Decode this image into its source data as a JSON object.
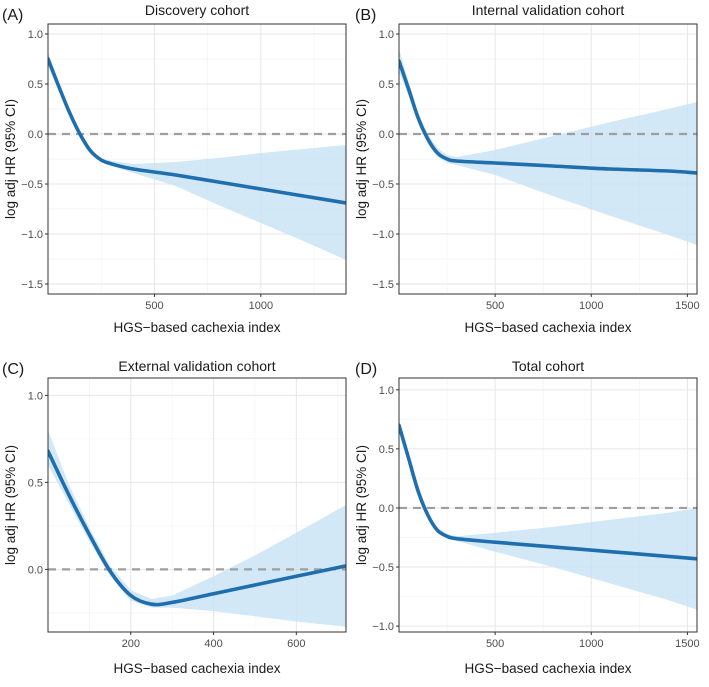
{
  "colors": {
    "line": "#1f6fae",
    "band": "#c7e2f4",
    "ref": "#9e9e9e"
  },
  "chart_data": [
    {
      "type": "line",
      "panel_label": "(A)",
      "title": "Discovery cohort",
      "xlabel": "HGS−based cachexia index",
      "ylabel": "log adj HR (95% CI)",
      "xlim": [
        0,
        1400
      ],
      "ylim": [
        -1.6,
        1.1
      ],
      "x_ticks": [
        500,
        1000
      ],
      "y_ticks": [
        1.0,
        0.5,
        0.0,
        -0.5,
        -1.0,
        -1.5
      ],
      "y_tick_labels": [
        "1.0",
        "0.5",
        "0.0",
        "−0.5",
        "−1.0",
        "−1.5"
      ],
      "reference_y": 0,
      "series": [
        {
          "name": "log adj HR",
          "x": [
            0,
            50,
            100,
            150,
            200,
            250,
            300,
            400,
            600,
            800,
            1000,
            1200,
            1400
          ],
          "y": [
            0.75,
            0.48,
            0.22,
            0.0,
            -0.17,
            -0.26,
            -0.3,
            -0.35,
            -0.41,
            -0.48,
            -0.55,
            -0.62,
            -0.69
          ],
          "lower": [
            0.68,
            0.44,
            0.2,
            -0.02,
            -0.19,
            -0.28,
            -0.32,
            -0.39,
            -0.52,
            -0.71,
            -0.89,
            -1.07,
            -1.26
          ],
          "upper": [
            0.82,
            0.52,
            0.24,
            0.02,
            -0.15,
            -0.24,
            -0.27,
            -0.3,
            -0.28,
            -0.24,
            -0.19,
            -0.15,
            -0.11
          ]
        }
      ]
    },
    {
      "type": "line",
      "panel_label": "(B)",
      "title": "Internal validation cohort",
      "xlabel": "HGS−based cachexia index",
      "ylabel": "log adj HR (95% CI)",
      "xlim": [
        0,
        1550
      ],
      "ylim": [
        -1.6,
        1.1
      ],
      "x_ticks": [
        500,
        1000,
        1500
      ],
      "y_ticks": [
        1.0,
        0.5,
        0.0,
        -0.5,
        -1.0,
        -1.5
      ],
      "y_tick_labels": [
        "1.0",
        "0.5",
        "0.0",
        "−0.5",
        "−1.0",
        "−1.5"
      ],
      "reference_y": 0,
      "series": [
        {
          "name": "log adj HR",
          "x": [
            0,
            50,
            100,
            150,
            200,
            250,
            300,
            500,
            800,
            1100,
            1400,
            1550
          ],
          "y": [
            0.73,
            0.45,
            0.16,
            -0.05,
            -0.19,
            -0.25,
            -0.27,
            -0.29,
            -0.32,
            -0.35,
            -0.37,
            -0.39
          ],
          "lower": [
            0.62,
            0.38,
            0.11,
            -0.1,
            -0.23,
            -0.29,
            -0.31,
            -0.41,
            -0.62,
            -0.82,
            -1.01,
            -1.11
          ],
          "upper": [
            0.85,
            0.52,
            0.21,
            0.0,
            -0.14,
            -0.21,
            -0.23,
            -0.16,
            -0.02,
            0.12,
            0.25,
            0.32
          ]
        }
      ]
    },
    {
      "type": "line",
      "panel_label": "(C)",
      "title": "External validation cohort",
      "xlabel": "HGS−based cachexia index",
      "ylabel": "log adj HR (95% CI)",
      "xlim": [
        0,
        720
      ],
      "ylim": [
        -0.36,
        1.1
      ],
      "x_ticks": [
        200,
        400,
        600
      ],
      "y_ticks": [
        1.0,
        0.5,
        0.0
      ],
      "y_tick_labels": [
        "1.0",
        "0.5",
        "0.0"
      ],
      "reference_y": 0,
      "series": [
        {
          "name": "log adj HR",
          "x": [
            0,
            50,
            100,
            150,
            200,
            250,
            300,
            400,
            500,
            600,
            720
          ],
          "y": [
            0.68,
            0.43,
            0.2,
            -0.01,
            -0.15,
            -0.2,
            -0.19,
            -0.14,
            -0.09,
            -0.04,
            0.02
          ],
          "lower": [
            0.6,
            0.38,
            0.16,
            -0.04,
            -0.18,
            -0.22,
            -0.22,
            -0.24,
            -0.27,
            -0.3,
            -0.33
          ],
          "upper": [
            0.8,
            0.49,
            0.24,
            0.02,
            -0.12,
            -0.17,
            -0.15,
            -0.04,
            0.08,
            0.21,
            0.37
          ]
        }
      ]
    },
    {
      "type": "line",
      "panel_label": "(D)",
      "title": "Total cohort",
      "xlabel": "HGS−based cachexia index",
      "ylabel": "log adj HR (95% CI)",
      "xlim": [
        0,
        1550
      ],
      "ylim": [
        -1.05,
        1.1
      ],
      "x_ticks": [
        500,
        1000,
        1500
      ],
      "y_ticks": [
        1.0,
        0.5,
        0.0,
        -0.5,
        -1.0
      ],
      "y_tick_labels": [
        "1.0",
        "0.5",
        "0.0",
        "−0.5",
        "−1.0"
      ],
      "reference_y": 0,
      "series": [
        {
          "name": "log adj HR",
          "x": [
            0,
            50,
            100,
            150,
            200,
            250,
            300,
            500,
            800,
            1100,
            1400,
            1550
          ],
          "y": [
            0.7,
            0.42,
            0.14,
            -0.06,
            -0.19,
            -0.24,
            -0.26,
            -0.29,
            -0.33,
            -0.37,
            -0.41,
            -0.43
          ],
          "lower": [
            0.66,
            0.39,
            0.12,
            -0.08,
            -0.21,
            -0.26,
            -0.28,
            -0.37,
            -0.5,
            -0.64,
            -0.78,
            -0.86
          ],
          "upper": [
            0.74,
            0.45,
            0.16,
            -0.04,
            -0.17,
            -0.22,
            -0.24,
            -0.21,
            -0.16,
            -0.1,
            -0.04,
            0.0
          ]
        }
      ]
    }
  ]
}
